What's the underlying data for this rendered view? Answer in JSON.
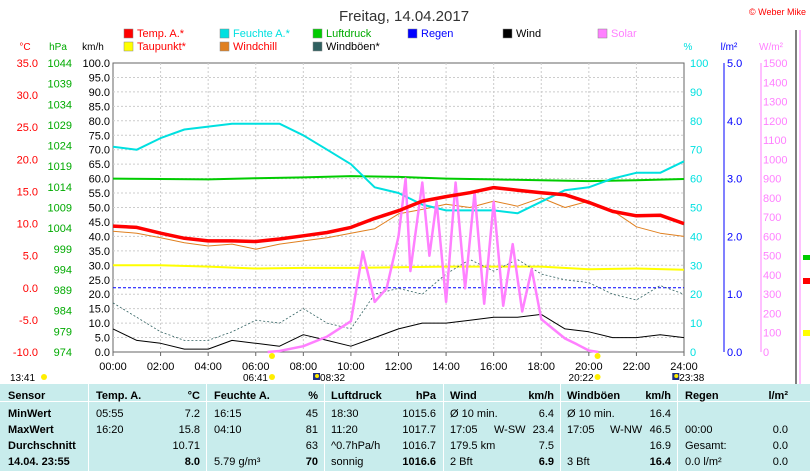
{
  "title": "Freitag, 14.04.2017",
  "credit": "© Weber Mike",
  "colors": {
    "temp": "#ff0000",
    "feuchte": "#00e0e0",
    "luftdruck": "#00cc00",
    "regen": "#0000ff",
    "wind": "#000000",
    "solar": "#ff80ff",
    "taupunkt": "#ffff00",
    "windchill": "#e08020",
    "windboeen": "#306060",
    "table_bg": "#c8ecec"
  },
  "legend": [
    {
      "label": "Temp. A.*",
      "color": "#ff0000",
      "text_color": "#ff0000"
    },
    {
      "label": "Feuchte A.*",
      "color": "#00e0e0",
      "text_color": "#00e0e0"
    },
    {
      "label": "Luftdruck",
      "color": "#00cc00",
      "text_color": "#00aa00"
    },
    {
      "label": "Regen",
      "color": "#0000ff",
      "text_color": "#0000ff"
    },
    {
      "label": "Wind",
      "color": "#000000",
      "text_color": "#000000"
    },
    {
      "label": "Solar",
      "color": "#ff80ff",
      "text_color": "#ff80ff"
    },
    {
      "label": "Taupunkt*",
      "color": "#ffff00",
      "text_color": "#ff0000"
    },
    {
      "label": "Windchill",
      "color": "#e08020",
      "text_color": "#ff0000"
    },
    {
      "label": "Windböen*",
      "color": "#306060",
      "text_color": "#000000"
    }
  ],
  "chart_data": {
    "type": "line",
    "x_ticks": [
      "00:00",
      "02:00",
      "04:00",
      "06:00",
      "08:00",
      "10:00",
      "12:00",
      "14:00",
      "16:00",
      "18:00",
      "20:00",
      "22:00",
      "24:00"
    ],
    "axes": {
      "temp": {
        "unit": "°C",
        "ticks": [
          "35.0",
          "30.0",
          "25.0",
          "20.0",
          "15.0",
          "10.0",
          "5.0",
          "0.0",
          "-5.0",
          "-10.0"
        ],
        "range": [
          -10,
          35
        ]
      },
      "pressure": {
        "unit": "hPa",
        "ticks": [
          "1044",
          "1039",
          "1034",
          "1029",
          "1024",
          "1019",
          "1014",
          "1009",
          "1004",
          "999",
          "994",
          "989",
          "984",
          "979",
          "974"
        ],
        "range": [
          974,
          1044
        ]
      },
      "wind": {
        "unit": "km/h",
        "ticks": [
          "100.0",
          "95.0",
          "90.0",
          "85.0",
          "80.0",
          "75.0",
          "70.0",
          "65.0",
          "60.0",
          "55.0",
          "50.0",
          "45.0",
          "40.0",
          "35.0",
          "30.0",
          "25.0",
          "20.0",
          "15.0",
          "10.0",
          "5.0",
          "0.0"
        ],
        "range": [
          0,
          100
        ]
      },
      "humidity": {
        "unit": "%",
        "ticks": [
          "100",
          "90",
          "80",
          "70",
          "60",
          "50",
          "40",
          "30",
          "20",
          "10",
          "0"
        ],
        "range": [
          0,
          100
        ]
      },
      "rain": {
        "unit": "l/m²",
        "ticks": [
          "5.0",
          "4.0",
          "3.0",
          "2.0",
          "1.0",
          "0.0"
        ],
        "range": [
          0,
          5
        ]
      },
      "solar": {
        "unit": "W/m²",
        "ticks": [
          "1500",
          "1400",
          "1300",
          "1200",
          "1100",
          "1000",
          "900",
          "800",
          "700",
          "600",
          "500",
          "400",
          "300",
          "200",
          "100",
          "0"
        ],
        "range": [
          0,
          1500
        ]
      }
    },
    "series": [
      {
        "name": "Temp. A.*",
        "axis": "temp",
        "x": [
          0,
          1,
          2,
          3,
          4,
          5,
          6,
          7,
          8,
          9,
          10,
          11,
          12,
          13,
          14,
          15,
          16,
          17,
          18,
          19,
          20,
          21,
          22,
          23,
          24
        ],
        "y": [
          9.6,
          9.4,
          8.5,
          7.7,
          7.3,
          7.3,
          7.2,
          7.6,
          8.1,
          8.6,
          9.4,
          10.8,
          12.0,
          13.5,
          14.2,
          14.8,
          15.6,
          15.2,
          14.8,
          14.5,
          13.3,
          11.9,
          11.2,
          11.3,
          10.0
        ]
      },
      {
        "name": "Feuchte A.*",
        "axis": "humidity",
        "x": [
          0,
          1,
          2,
          3,
          4,
          5,
          6,
          7,
          8,
          9,
          10,
          11,
          12,
          13,
          14,
          15,
          16,
          17,
          18,
          19,
          20,
          21,
          22,
          23,
          24
        ],
        "y": [
          71,
          70,
          74,
          77,
          78,
          79,
          79,
          79,
          75,
          70,
          65,
          57,
          55,
          51,
          49,
          49,
          49,
          48,
          52,
          56,
          57,
          60,
          62,
          62,
          66
        ]
      },
      {
        "name": "Luftdruck",
        "axis": "pressure",
        "x": [
          0,
          2,
          4,
          6,
          8,
          10,
          12,
          14,
          16,
          18,
          20,
          22,
          24
        ],
        "y": [
          1016.0,
          1015.9,
          1015.8,
          1016.1,
          1016.3,
          1016.6,
          1016.4,
          1016.0,
          1015.8,
          1015.6,
          1015.4,
          1015.6,
          1015.9
        ]
      },
      {
        "name": "Taupunkt*",
        "axis": "temp",
        "x": [
          0,
          2,
          4,
          6,
          8,
          10,
          12,
          14,
          16,
          18,
          20,
          22,
          24
        ],
        "y": [
          3.5,
          3.5,
          3.3,
          3.0,
          3.1,
          3.1,
          3.2,
          3.3,
          3.3,
          3.3,
          2.9,
          3.0,
          2.8
        ]
      },
      {
        "name": "Windchill",
        "axis": "temp",
        "x": [
          0,
          1,
          2,
          3,
          4,
          5,
          6,
          7,
          8,
          9,
          10,
          11,
          12,
          13,
          14,
          15,
          16,
          17,
          18,
          19,
          20,
          21,
          22,
          23,
          24
        ],
        "y": [
          8.8,
          8.5,
          7.8,
          7.0,
          6.5,
          6.8,
          6.0,
          6.8,
          7.3,
          7.8,
          8.5,
          9.2,
          11.5,
          12.2,
          13.0,
          12.5,
          13.5,
          12.7,
          14.0,
          12.5,
          13.5,
          12.0,
          9.5,
          8.5,
          8.0
        ]
      },
      {
        "name": "Wind",
        "axis": "wind",
        "x": [
          0,
          1,
          2,
          3,
          4,
          5,
          6,
          7,
          8,
          9,
          10,
          11,
          12,
          13,
          14,
          15,
          16,
          17,
          18,
          19,
          20,
          21,
          22,
          23,
          24
        ],
        "y": [
          8,
          4,
          3,
          1,
          1,
          4,
          3,
          2,
          6,
          4,
          2,
          5,
          8,
          10,
          10,
          11,
          12,
          12,
          13,
          8,
          7,
          5,
          5,
          6,
          5
        ]
      },
      {
        "name": "Windböen*",
        "axis": "wind",
        "x": [
          0,
          1,
          2,
          3,
          4,
          5,
          6,
          7,
          8,
          9,
          10,
          11,
          12,
          13,
          14,
          15,
          16,
          17,
          18,
          19,
          20,
          21,
          22,
          23,
          24
        ],
        "y": [
          17,
          12,
          7,
          4,
          4,
          7,
          11,
          10,
          15,
          10,
          8,
          20,
          22,
          20,
          27,
          32,
          28,
          32,
          27,
          25,
          24,
          20,
          18,
          23,
          20
        ]
      },
      {
        "name": "Solar",
        "axis": "solar",
        "x": [
          6.5,
          7,
          8,
          9,
          10,
          10.5,
          11,
          11.5,
          12,
          12.3,
          12.5,
          13,
          13.3,
          13.6,
          14,
          14.4,
          14.8,
          15.2,
          15.6,
          16,
          16.4,
          16.8,
          17.2,
          17.6,
          18,
          18.5,
          19,
          19.5,
          20,
          20.4
        ],
        "y": [
          0,
          5,
          30,
          80,
          160,
          520,
          260,
          330,
          600,
          900,
          420,
          880,
          500,
          780,
          260,
          880,
          330,
          830,
          250,
          780,
          240,
          560,
          210,
          430,
          170,
          120,
          70,
          40,
          8,
          0
        ]
      }
    ],
    "markers": {
      "sunrise": "06:41",
      "sunset": "20:22",
      "moonrise": "08:32",
      "moonset": "23:38",
      "time_left": "13:41"
    }
  },
  "table": {
    "headers": {
      "sensor": "Sensor",
      "temp": "Temp. A.",
      "temp_unit": "°C",
      "feuchte": "Feuchte A.",
      "feuchte_unit": "%",
      "druck": "Luftdruck",
      "druck_unit": "hPa",
      "wind": "Wind",
      "wind_unit": "km/h",
      "boeen": "Windböen",
      "boeen_unit": "km/h",
      "regen": "Regen",
      "regen_unit": "l/m²"
    },
    "rows": {
      "min": {
        "label": "MinWert",
        "temp_time": "05:55",
        "temp_val": "7.2",
        "feu_time": "16:15",
        "feu_val": "45",
        "dr_time": "18:30",
        "dr_val": "1015.6",
        "wi_label": "Ø 10 min.",
        "wi_dir": "",
        "wi_val": "6.4",
        "bo_label": "Ø 10 min.",
        "bo_dir": "",
        "bo_val": "16.4",
        "re_label": "",
        "re_val": ""
      },
      "max": {
        "label": "MaxWert",
        "temp_time": "16:20",
        "temp_val": "15.8",
        "feu_time": "04:10",
        "feu_val": "81",
        "dr_time": "11:20",
        "dr_val": "1017.7",
        "wi_label": "17:05",
        "wi_dir": "W-SW",
        "wi_val": "23.4",
        "bo_label": "17:05",
        "bo_dir": "W-NW",
        "bo_val": "46.5",
        "re_label": "00:00",
        "re_val": "0.0"
      },
      "avg": {
        "label": "Durchschnitt",
        "temp_time": "",
        "temp_val": "10.71",
        "feu_time": "",
        "feu_val": "63",
        "dr_time": "^0.7hPa/h",
        "dr_val": "1016.7",
        "wi_label": "179.5 km",
        "wi_dir": "",
        "wi_val": "7.5",
        "bo_label": "",
        "bo_dir": "",
        "bo_val": "16.9",
        "re_label": "Gesamt:",
        "re_val": "0.0"
      },
      "cur": {
        "label": "14.04. 23:55",
        "temp_time": "",
        "temp_val": "8.0",
        "feu_time": "5.79 g/m³",
        "feu_val": "70",
        "dr_time": "sonnig",
        "dr_val": "1016.6",
        "wi_label": "2 Bft",
        "wi_dir": "",
        "wi_val": "6.9",
        "bo_label": "3 Bft",
        "bo_dir": "",
        "bo_val": "16.4",
        "re_label": "0.0 l/m²",
        "re_val": "0.0"
      }
    }
  }
}
